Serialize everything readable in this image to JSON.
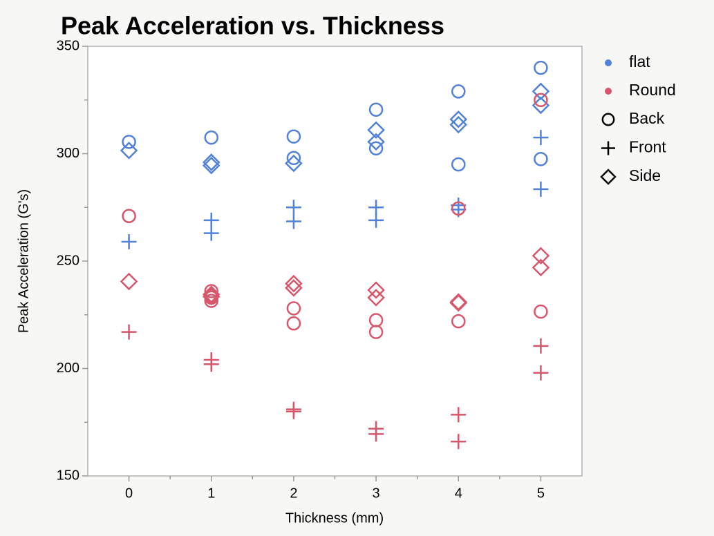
{
  "chart_data": {
    "type": "scatter",
    "title": "Peak Acceleration vs. Thickness",
    "x_label": "Thickness (mm)",
    "y_label": "Peak Acceleration (G's)",
    "xlim": [
      -0.5,
      5.5
    ],
    "xticks": [
      0,
      1,
      2,
      3,
      4,
      5
    ],
    "x_minor_ticks": [
      0.5,
      1.5,
      2.5,
      3.5,
      4.5
    ],
    "ylim": [
      150,
      350
    ],
    "yticks": [
      150,
      200,
      250,
      300,
      350
    ],
    "y_minor_ticks": [
      175,
      225,
      275,
      325
    ],
    "color_legend": [
      {
        "name": "flat",
        "color": "#5281d9"
      },
      {
        "name": "Round",
        "color": "#d8566b"
      }
    ],
    "marker_legend": [
      {
        "name": "Back",
        "marker": "circle"
      },
      {
        "name": "Front",
        "marker": "plus"
      },
      {
        "name": "Side",
        "marker": "diamond"
      }
    ],
    "series": [
      {
        "color_index": 0,
        "marker_index": 0,
        "x": [
          0,
          1,
          2,
          2,
          3,
          3,
          4,
          4,
          5,
          5
        ],
        "values": [
          305.5,
          307.5,
          308,
          298,
          320.5,
          302.5,
          329,
          295,
          340,
          297.5
        ]
      },
      {
        "color_index": 0,
        "marker_index": 1,
        "x": [
          0,
          1,
          1,
          2,
          2,
          3,
          3,
          4,
          4,
          5,
          5
        ],
        "values": [
          259,
          269,
          263,
          275,
          268.5,
          275,
          269,
          276,
          274,
          307.5,
          283.5
        ]
      },
      {
        "color_index": 0,
        "marker_index": 2,
        "x": [
          0,
          1,
          1,
          2,
          3,
          3,
          4,
          4,
          5,
          5
        ],
        "values": [
          301.5,
          296,
          294.5,
          295.5,
          311,
          305.5,
          316,
          313.5,
          329,
          322.5
        ]
      },
      {
        "color_index": 1,
        "marker_index": 0,
        "x": [
          0,
          1,
          1,
          1,
          2,
          2,
          3,
          3,
          4,
          4,
          5,
          5
        ],
        "values": [
          271,
          236,
          233,
          231.5,
          228,
          221,
          222.5,
          217,
          274.5,
          222,
          325,
          226.5
        ]
      },
      {
        "color_index": 1,
        "marker_index": 1,
        "x": [
          0,
          1,
          1,
          2,
          2,
          3,
          3,
          4,
          4,
          5,
          5
        ],
        "values": [
          217,
          204,
          202,
          181,
          180,
          172,
          169.5,
          178.5,
          166,
          210.5,
          198
        ]
      },
      {
        "color_index": 1,
        "marker_index": 2,
        "x": [
          0,
          1,
          1,
          2,
          2,
          3,
          3,
          4,
          4,
          5,
          5
        ],
        "values": [
          240.5,
          234.5,
          233.5,
          239.5,
          237.5,
          236.5,
          233,
          231,
          230.5,
          252.5,
          247
        ]
      }
    ]
  }
}
